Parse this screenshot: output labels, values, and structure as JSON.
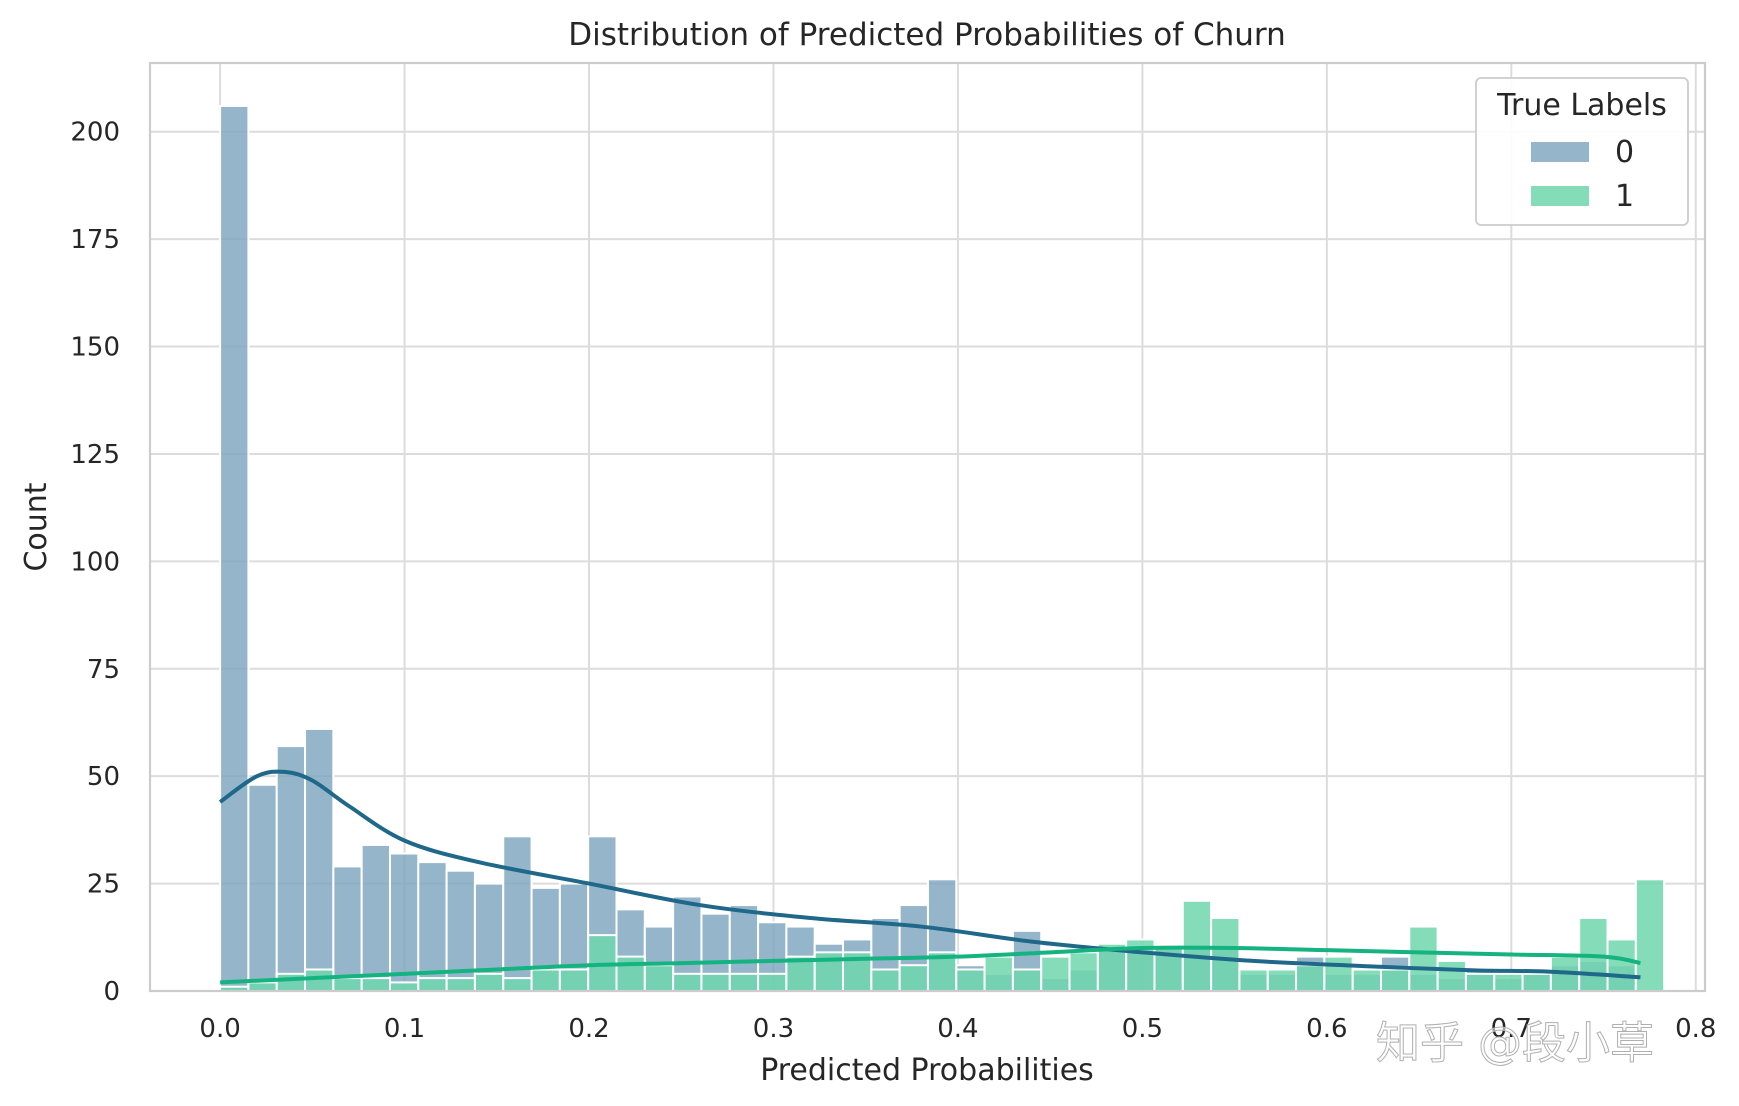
{
  "chart_data": {
    "type": "bar",
    "title": "Distribution of Predicted Probabilities of Churn",
    "xlabel": "Predicted Probabilities",
    "ylabel": "Count",
    "xlim": [
      -0.038,
      0.805
    ],
    "ylim": [
      0,
      216
    ],
    "xticks": [
      0.0,
      0.1,
      0.2,
      0.3,
      0.4,
      0.5,
      0.6,
      0.7,
      0.8
    ],
    "xtick_labels": [
      "0.0",
      "0.1",
      "0.2",
      "0.3",
      "0.4",
      "0.5",
      "0.6",
      "0.7",
      "0.8"
    ],
    "yticks": [
      0,
      25,
      50,
      75,
      100,
      125,
      150,
      175,
      200
    ],
    "ytick_labels": [
      "0",
      "25",
      "50",
      "75",
      "100",
      "125",
      "150",
      "175",
      "200"
    ],
    "grid": true,
    "legend": {
      "title": "True Labels",
      "position": "top-right"
    },
    "bin_start": 0.0,
    "bin_width": 0.01535,
    "series": [
      {
        "name": "0",
        "color": "#7ea6be",
        "values": [
          206,
          48,
          57,
          61,
          29,
          34,
          32,
          30,
          28,
          25,
          36,
          24,
          25,
          36,
          19,
          15,
          22,
          18,
          20,
          16,
          15,
          11,
          12,
          17,
          20,
          26,
          6,
          4,
          14,
          3,
          5,
          10,
          9,
          10,
          10,
          10,
          4,
          4,
          8,
          4,
          4,
          8,
          4,
          3,
          5,
          3,
          4,
          6,
          7,
          6
        ],
        "kde": {
          "color": "#1f6889",
          "x": [
            0.0,
            0.02,
            0.035,
            0.05,
            0.07,
            0.1,
            0.14,
            0.2,
            0.26,
            0.32,
            0.38,
            0.44,
            0.5,
            0.56,
            0.62,
            0.68,
            0.72,
            0.77
          ],
          "y": [
            44,
            50,
            51,
            49,
            43,
            35,
            30,
            25,
            20,
            17,
            15,
            11.5,
            9,
            7,
            5.8,
            4.8,
            4.5,
            3.2
          ]
        }
      },
      {
        "name": "1",
        "color": "#6fd6ad",
        "values": [
          1,
          2,
          4,
          5,
          3,
          3,
          2,
          3,
          3,
          4,
          3,
          5,
          5,
          13,
          8,
          6,
          4,
          4,
          4,
          4,
          8,
          9,
          9,
          5,
          6,
          9,
          5,
          8,
          5,
          8,
          9,
          11,
          12,
          10,
          21,
          17,
          5,
          5,
          6,
          8,
          5,
          5,
          15,
          7,
          4,
          4,
          4,
          8,
          17,
          12,
          26
        ]
      }
    ]
  },
  "kde1": {
    "color": "#14b37f",
    "x": [
      0.0,
      0.05,
      0.1,
      0.15,
      0.2,
      0.25,
      0.3,
      0.35,
      0.4,
      0.45,
      0.5,
      0.55,
      0.6,
      0.65,
      0.7,
      0.75,
      0.77
    ],
    "y": [
      2,
      3,
      4,
      5,
      6,
      6.5,
      7,
      7.5,
      8,
      9,
      10,
      10,
      9.5,
      9,
      8.5,
      8,
      6.5
    ]
  },
  "watermark": "知乎 @段小草"
}
